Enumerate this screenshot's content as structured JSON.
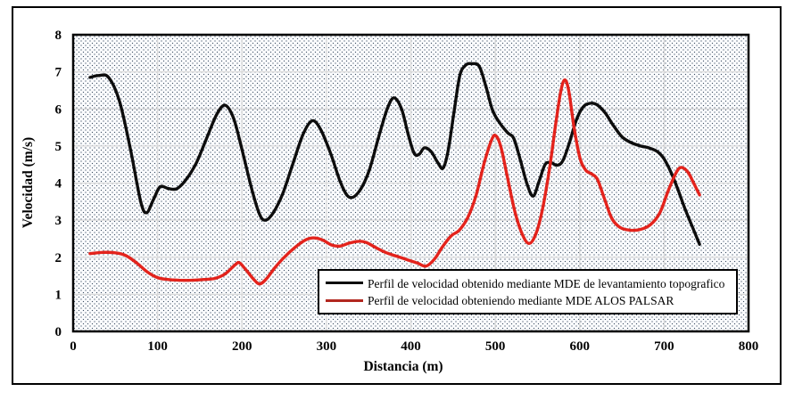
{
  "chart_data": {
    "type": "line",
    "title": "",
    "xlabel": "Distancia (m)",
    "ylabel": "Velocidad (m/s)",
    "xlim": [
      0,
      800
    ],
    "ylim": [
      0,
      8
    ],
    "x_ticks": [
      0,
      100,
      200,
      300,
      400,
      500,
      600,
      700,
      800
    ],
    "y_ticks": [
      0,
      1,
      2,
      3,
      4,
      5,
      6,
      7,
      8
    ],
    "grid": true,
    "legend_position": "inside-bottom-right",
    "colors": {
      "grid": "#d9d9d9",
      "plot_border": "#000000",
      "outer_border": "#000000",
      "plot_background": "#fbfcfe",
      "pattern_dot": "#3d4f63"
    },
    "series": [
      {
        "name": "Perfil de velocidad obtenido mediante MDE de levantamiento topografico",
        "color": "#0d0d0d",
        "legend_color": "#0d0d0d",
        "points": [
          [
            20,
            6.85
          ],
          [
            30,
            6.9
          ],
          [
            42,
            6.85
          ],
          [
            55,
            6.2
          ],
          [
            68,
            4.9
          ],
          [
            80,
            3.5
          ],
          [
            87,
            3.2
          ],
          [
            95,
            3.55
          ],
          [
            103,
            3.9
          ],
          [
            113,
            3.85
          ],
          [
            123,
            3.85
          ],
          [
            134,
            4.1
          ],
          [
            146,
            4.55
          ],
          [
            158,
            5.2
          ],
          [
            170,
            5.85
          ],
          [
            180,
            6.1
          ],
          [
            190,
            5.75
          ],
          [
            200,
            4.9
          ],
          [
            212,
            3.8
          ],
          [
            221,
            3.15
          ],
          [
            228,
            3.0
          ],
          [
            237,
            3.2
          ],
          [
            248,
            3.7
          ],
          [
            260,
            4.5
          ],
          [
            272,
            5.3
          ],
          [
            283,
            5.68
          ],
          [
            293,
            5.45
          ],
          [
            305,
            4.8
          ],
          [
            317,
            4.0
          ],
          [
            327,
            3.62
          ],
          [
            338,
            3.75
          ],
          [
            350,
            4.3
          ],
          [
            362,
            5.25
          ],
          [
            372,
            6.0
          ],
          [
            380,
            6.3
          ],
          [
            389,
            6.0
          ],
          [
            397,
            5.3
          ],
          [
            404,
            4.8
          ],
          [
            410,
            4.78
          ],
          [
            416,
            4.95
          ],
          [
            424,
            4.85
          ],
          [
            432,
            4.55
          ],
          [
            438,
            4.4
          ],
          [
            444,
            4.85
          ],
          [
            451,
            5.9
          ],
          [
            458,
            6.9
          ],
          [
            465,
            7.18
          ],
          [
            472,
            7.22
          ],
          [
            481,
            7.15
          ],
          [
            489,
            6.6
          ],
          [
            497,
            5.95
          ],
          [
            506,
            5.6
          ],
          [
            515,
            5.35
          ],
          [
            522,
            5.2
          ],
          [
            530,
            4.6
          ],
          [
            538,
            3.95
          ],
          [
            545,
            3.65
          ],
          [
            552,
            4.05
          ],
          [
            559,
            4.5
          ],
          [
            566,
            4.55
          ],
          [
            573,
            4.48
          ],
          [
            580,
            4.6
          ],
          [
            588,
            5.1
          ],
          [
            596,
            5.7
          ],
          [
            604,
            6.05
          ],
          [
            612,
            6.15
          ],
          [
            620,
            6.12
          ],
          [
            630,
            5.9
          ],
          [
            640,
            5.55
          ],
          [
            650,
            5.25
          ],
          [
            660,
            5.1
          ],
          [
            672,
            5.0
          ],
          [
            682,
            4.95
          ],
          [
            692,
            4.85
          ],
          [
            700,
            4.65
          ],
          [
            708,
            4.3
          ],
          [
            716,
            3.85
          ],
          [
            724,
            3.35
          ],
          [
            732,
            2.9
          ],
          [
            742,
            2.35
          ]
        ]
      },
      {
        "name": "Perfil de velocidad obteniendo mediante MDE ALOS PALSAR",
        "color": "#e3231c",
        "legend_color": "#b2271f",
        "points": [
          [
            20,
            2.1
          ],
          [
            35,
            2.13
          ],
          [
            50,
            2.12
          ],
          [
            62,
            2.05
          ],
          [
            75,
            1.85
          ],
          [
            88,
            1.6
          ],
          [
            100,
            1.45
          ],
          [
            112,
            1.4
          ],
          [
            126,
            1.38
          ],
          [
            140,
            1.38
          ],
          [
            155,
            1.4
          ],
          [
            168,
            1.43
          ],
          [
            180,
            1.55
          ],
          [
            192,
            1.8
          ],
          [
            197,
            1.85
          ],
          [
            205,
            1.65
          ],
          [
            214,
            1.4
          ],
          [
            221,
            1.28
          ],
          [
            229,
            1.42
          ],
          [
            239,
            1.72
          ],
          [
            250,
            2.0
          ],
          [
            262,
            2.25
          ],
          [
            274,
            2.45
          ],
          [
            284,
            2.52
          ],
          [
            295,
            2.47
          ],
          [
            306,
            2.33
          ],
          [
            316,
            2.3
          ],
          [
            327,
            2.38
          ],
          [
            338,
            2.43
          ],
          [
            347,
            2.4
          ],
          [
            357,
            2.28
          ],
          [
            370,
            2.13
          ],
          [
            383,
            2.03
          ],
          [
            396,
            1.93
          ],
          [
            408,
            1.84
          ],
          [
            418,
            1.76
          ],
          [
            428,
            1.95
          ],
          [
            438,
            2.3
          ],
          [
            448,
            2.58
          ],
          [
            457,
            2.72
          ],
          [
            467,
            3.05
          ],
          [
            477,
            3.65
          ],
          [
            487,
            4.55
          ],
          [
            496,
            5.18
          ],
          [
            501,
            5.27
          ],
          [
            507,
            4.95
          ],
          [
            514,
            4.2
          ],
          [
            523,
            3.25
          ],
          [
            532,
            2.62
          ],
          [
            540,
            2.37
          ],
          [
            548,
            2.62
          ],
          [
            556,
            3.3
          ],
          [
            564,
            4.35
          ],
          [
            571,
            5.5
          ],
          [
            577,
            6.4
          ],
          [
            582,
            6.78
          ],
          [
            587,
            6.5
          ],
          [
            593,
            5.55
          ],
          [
            600,
            4.7
          ],
          [
            607,
            4.35
          ],
          [
            614,
            4.25
          ],
          [
            621,
            4.1
          ],
          [
            629,
            3.6
          ],
          [
            638,
            3.05
          ],
          [
            648,
            2.8
          ],
          [
            660,
            2.73
          ],
          [
            672,
            2.75
          ],
          [
            684,
            2.88
          ],
          [
            695,
            3.2
          ],
          [
            705,
            3.8
          ],
          [
            714,
            4.27
          ],
          [
            720,
            4.42
          ],
          [
            728,
            4.3
          ],
          [
            735,
            4.0
          ],
          [
            742,
            3.68
          ]
        ]
      }
    ]
  }
}
